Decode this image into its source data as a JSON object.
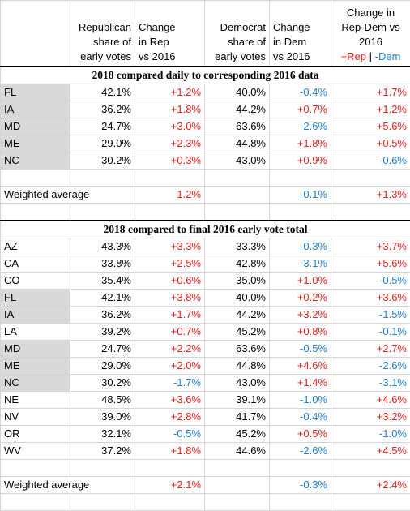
{
  "headers": {
    "rep_share": [
      "Republican",
      "share of",
      "early votes"
    ],
    "rep_change": [
      "Change",
      "in Rep",
      "vs 2016"
    ],
    "dem_share": [
      "Democrat",
      "share of",
      "early votes"
    ],
    "dem_change": [
      "Change",
      "in Dem",
      "vs 2016"
    ],
    "diff": [
      "Change in",
      "Rep-Dem vs",
      "2016"
    ],
    "legend_rep": "+Rep",
    "legend_sep": " | ",
    "legend_dem": "-Dem"
  },
  "section1": {
    "title": "2018 compared daily to corresponding 2016 data",
    "rows": [
      {
        "state": "FL",
        "rep": "42.1%",
        "rep_chg": "+1.2%",
        "dem": "40.0%",
        "dem_chg": "-0.4%",
        "diff": "+1.7%"
      },
      {
        "state": "IA",
        "rep": "36.2%",
        "rep_chg": "+1.8%",
        "dem": "44.2%",
        "dem_chg": "+0.7%",
        "diff": "+1.2%"
      },
      {
        "state": "MD",
        "rep": "24.7%",
        "rep_chg": "+3.0%",
        "dem": "63.6%",
        "dem_chg": "-2.6%",
        "diff": "+5.6%"
      },
      {
        "state": "ME",
        "rep": "29.0%",
        "rep_chg": "+2.3%",
        "dem": "44.8%",
        "dem_chg": "+1.8%",
        "diff": "+0.5%"
      },
      {
        "state": "NC",
        "rep": "30.2%",
        "rep_chg": "+0.3%",
        "dem": "43.0%",
        "dem_chg": "+0.9%",
        "diff": "-0.6%"
      }
    ],
    "weighted": {
      "label": "Weighted average",
      "rep_chg": "1.2%",
      "dem_chg": "-0.1%",
      "diff": "+1.3%"
    }
  },
  "section2": {
    "title": "2018 compared to final 2016 early vote total",
    "rows": [
      {
        "state": "AZ",
        "rep": "43.3%",
        "rep_chg": "+3.3%",
        "dem": "33.3%",
        "dem_chg": "-0.3%",
        "diff": "+3.7%"
      },
      {
        "state": "CA",
        "rep": "33.8%",
        "rep_chg": "+2.5%",
        "dem": "42.8%",
        "dem_chg": "-3.1%",
        "diff": "+5.6%"
      },
      {
        "state": "CO",
        "rep": "35.4%",
        "rep_chg": "+0.6%",
        "dem": "35.0%",
        "dem_chg": "+1.0%",
        "diff": "-0.5%"
      },
      {
        "state": "FL",
        "rep": "42.1%",
        "rep_chg": "+3.8%",
        "dem": "40.0%",
        "dem_chg": "+0.2%",
        "diff": "+3.6%"
      },
      {
        "state": "IA",
        "rep": "36.2%",
        "rep_chg": "+1.7%",
        "dem": "44.2%",
        "dem_chg": "+3.2%",
        "diff": "-1.5%"
      },
      {
        "state": "LA",
        "rep": "39.2%",
        "rep_chg": "+0.7%",
        "dem": "45.2%",
        "dem_chg": "+0.8%",
        "diff": "-0.1%"
      },
      {
        "state": "MD",
        "rep": "24.7%",
        "rep_chg": "+2.2%",
        "dem": "63.6%",
        "dem_chg": "-0.5%",
        "diff": "+2.7%"
      },
      {
        "state": "ME",
        "rep": "29.0%",
        "rep_chg": "+2.0%",
        "dem": "44.8%",
        "dem_chg": "+4.6%",
        "diff": "-2.6%"
      },
      {
        "state": "NC",
        "rep": "30.2%",
        "rep_chg": "-1.7%",
        "dem": "43.0%",
        "dem_chg": "+1.4%",
        "diff": "-3.1%"
      },
      {
        "state": "NE",
        "rep": "48.5%",
        "rep_chg": "+3.6%",
        "dem": "39.1%",
        "dem_chg": "-1.0%",
        "diff": "+4.6%"
      },
      {
        "state": "NV",
        "rep": "39.0%",
        "rep_chg": "+2.8%",
        "dem": "41.7%",
        "dem_chg": "-0.4%",
        "diff": "+3.2%"
      },
      {
        "state": "OR",
        "rep": "32.1%",
        "rep_chg": "-0.5%",
        "dem": "45.2%",
        "dem_chg": "+0.5%",
        "diff": "-1.0%"
      },
      {
        "state": "WV",
        "rep": "37.2%",
        "rep_chg": "+1.8%",
        "dem": "44.6%",
        "dem_chg": "-2.6%",
        "diff": "+4.5%"
      }
    ],
    "weighted": {
      "label": "Weighted average",
      "rep_chg": "+2.1%",
      "dem_chg": "-0.3%",
      "diff": "+2.4%"
    }
  },
  "colors": {
    "positive": "#e3211c",
    "negative": "#1f7fd0",
    "state_highlight": "#d9d9d9"
  },
  "highlighted_states": {
    "section1": [
      "FL",
      "IA",
      "MD",
      "ME",
      "NC"
    ],
    "section2": [
      "FL",
      "IA",
      "MD",
      "ME",
      "NC"
    ]
  }
}
